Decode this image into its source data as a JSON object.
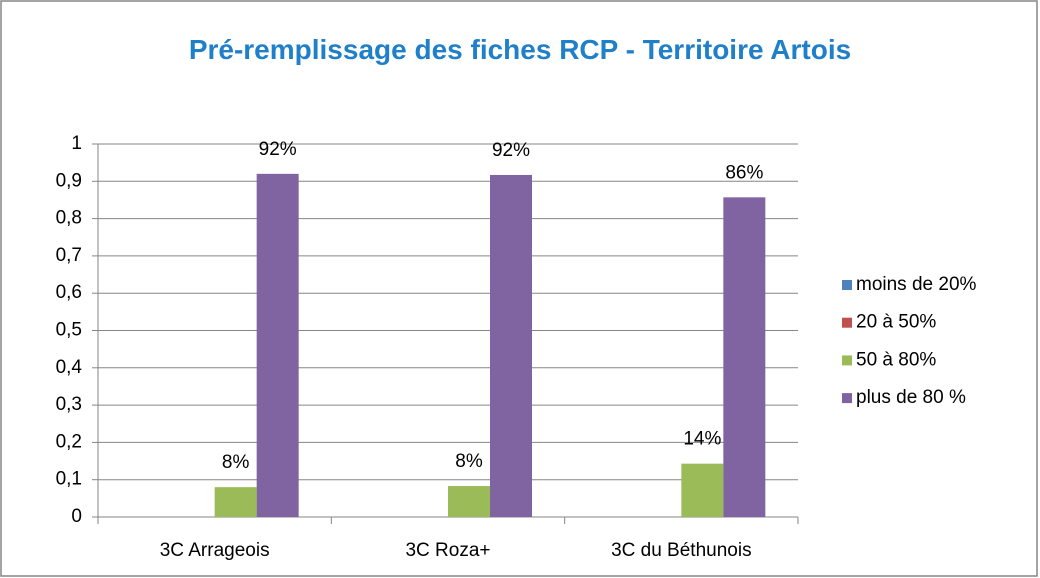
{
  "chart_data": {
    "type": "bar",
    "title": "Pré-remplissage des fiches RCP - Territoire Artois",
    "categories": [
      "3C Arrageois",
      "3C Roza+",
      "3C du Béthunois"
    ],
    "series": [
      {
        "name": "moins de 20%",
        "color": "#4f81bd",
        "values": [
          0,
          0,
          0
        ]
      },
      {
        "name": "20 à 50%",
        "color": "#c0504d",
        "values": [
          0,
          0,
          0
        ]
      },
      {
        "name": "50 à 80%",
        "color": "#9bbb59",
        "values": [
          0.08,
          0.083,
          0.143
        ],
        "value_labels": [
          "8%",
          "8%",
          "14%"
        ]
      },
      {
        "name": "plus de 80 %",
        "color": "#8064a2",
        "values": [
          0.92,
          0.917,
          0.857
        ],
        "value_labels": [
          "92%",
          "92%",
          "86%"
        ]
      }
    ],
    "ylim": [
      0,
      1
    ],
    "yticks": [
      0,
      {
        "value": 0.1,
        "label": "0,1"
      },
      {
        "value": 0.2,
        "label": "0,2"
      },
      {
        "value": 0.3,
        "label": "0,3"
      },
      {
        "value": 0.4,
        "label": "0,4"
      },
      {
        "value": 0.5,
        "label": "0,5"
      },
      {
        "value": 0.6,
        "label": "0,6"
      },
      {
        "value": 0.7,
        "label": "0,7"
      },
      {
        "value": 0.8,
        "label": "0,8"
      },
      {
        "value": 0.9,
        "label": "0,9"
      },
      1
    ],
    "grid": true,
    "legend": "right"
  }
}
